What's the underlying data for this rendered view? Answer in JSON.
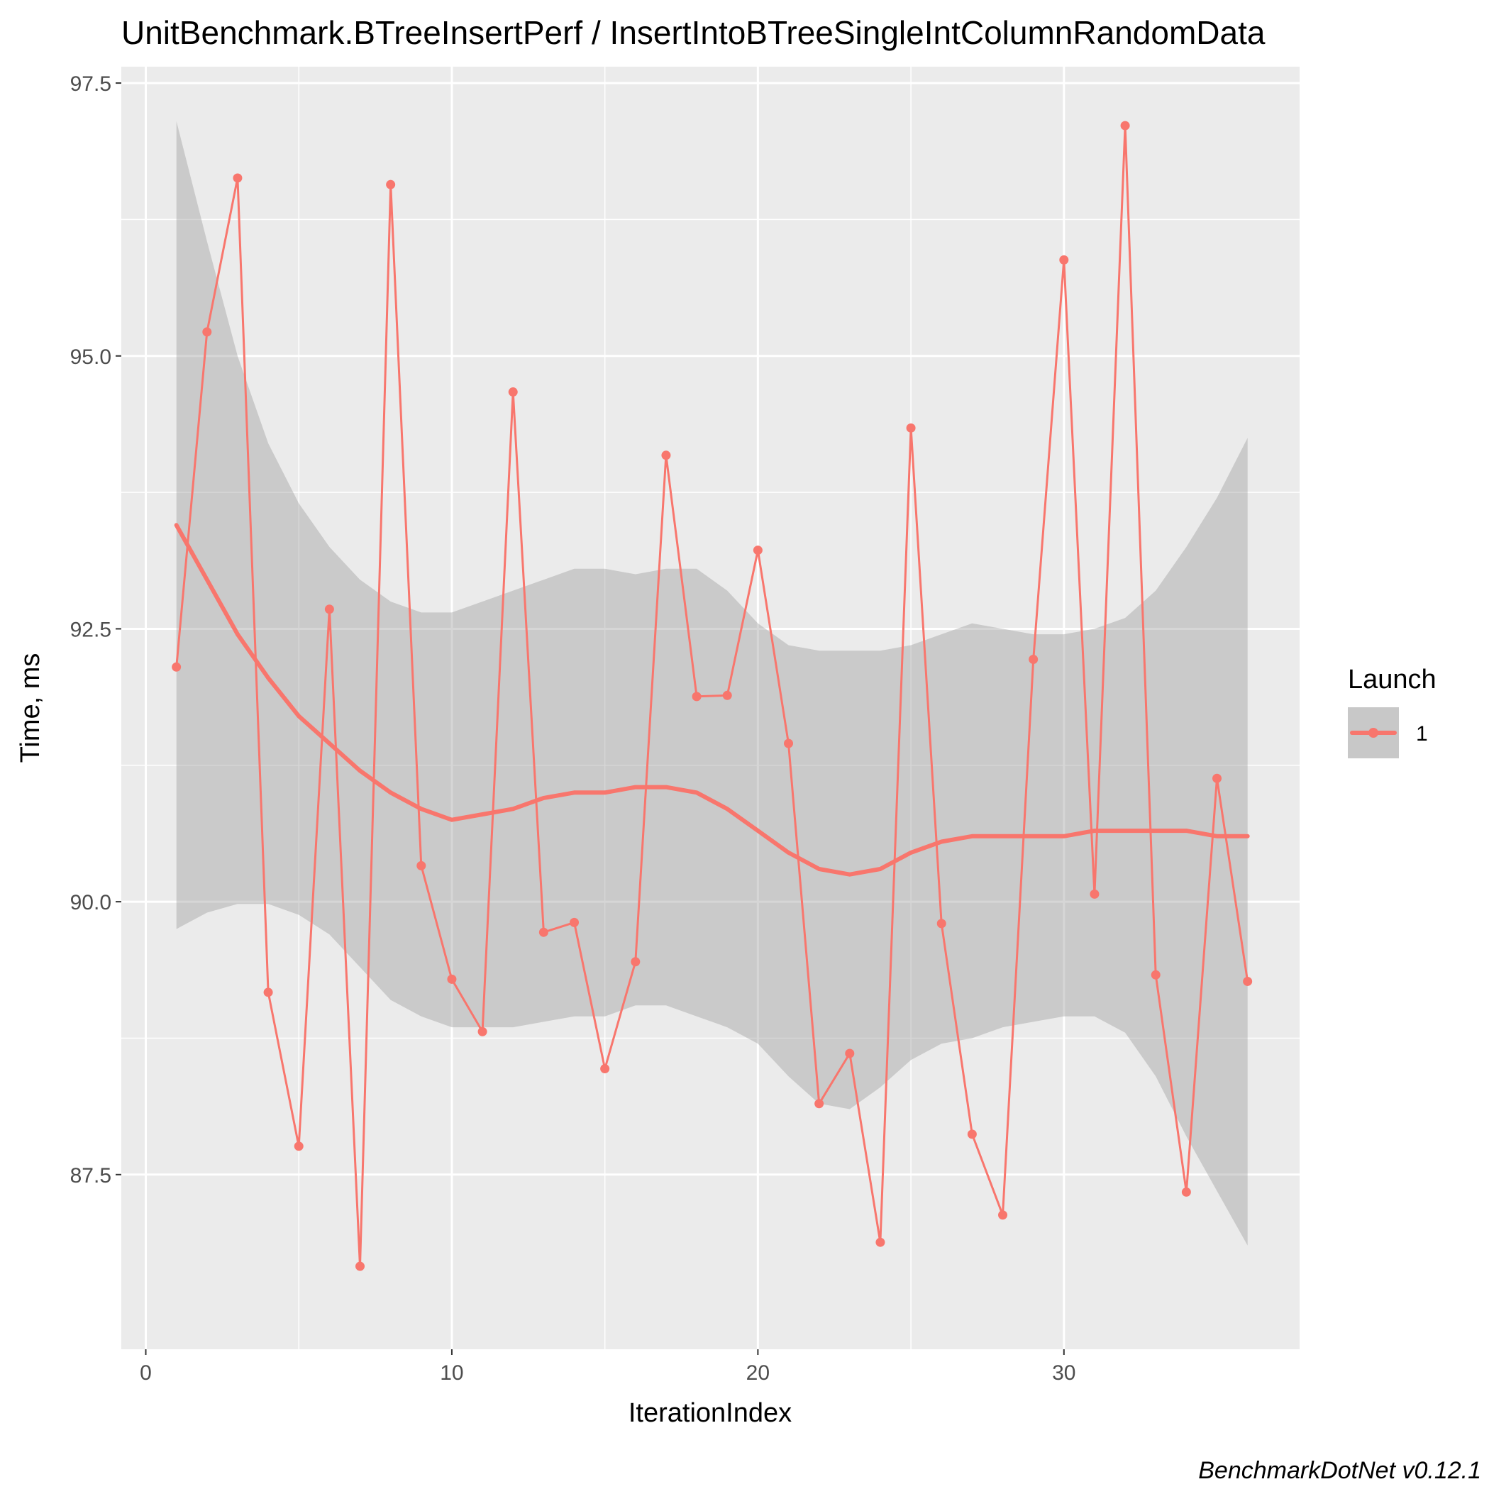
{
  "chart_data": {
    "type": "line",
    "title": "UnitBenchmark.BTreeInsertPerf / InsertIntoBTreeSingleIntColumnRandomData",
    "xlabel": "IterationIndex",
    "ylabel": "Time, ms",
    "xlim": [
      -0.8,
      37.7
    ],
    "ylim": [
      85.9,
      97.65
    ],
    "x_ticks": [
      0,
      10,
      20,
      30
    ],
    "x_tick_labels": [
      "0",
      "10",
      "20",
      "30"
    ],
    "y_ticks": [
      87.5,
      90.0,
      92.5,
      95.0,
      97.5
    ],
    "y_tick_labels": [
      "87.5",
      "90.0",
      "92.5",
      "95.0",
      "97.5"
    ],
    "grid": true,
    "legend": {
      "title": "Launch",
      "position": "right",
      "entries": [
        "1"
      ]
    },
    "colors": {
      "series": "#f8766d",
      "ribbon": "#c8c8c8",
      "panel": "#ebebeb",
      "grid": "#ffffff"
    },
    "series": [
      {
        "name": "1",
        "x": [
          1,
          2,
          3,
          4,
          5,
          6,
          7,
          8,
          9,
          10,
          11,
          12,
          13,
          14,
          15,
          16,
          17,
          18,
          19,
          20,
          21,
          22,
          23,
          24,
          25,
          26,
          27,
          28,
          29,
          30,
          31,
          32,
          33,
          34,
          35,
          36
        ],
        "values": [
          92.15,
          95.22,
          96.63,
          89.17,
          87.76,
          92.68,
          86.66,
          96.57,
          90.33,
          89.29,
          88.81,
          94.67,
          89.72,
          89.81,
          88.47,
          89.45,
          94.09,
          91.88,
          91.89,
          93.22,
          91.45,
          88.15,
          88.61,
          86.88,
          94.34,
          89.8,
          87.87,
          87.13,
          92.22,
          95.88,
          90.07,
          97.11,
          89.33,
          87.34,
          91.13,
          89.27
        ]
      }
    ],
    "smooth": {
      "x": [
        1,
        2,
        3,
        4,
        5,
        6,
        7,
        8,
        9,
        10,
        11,
        12,
        13,
        14,
        15,
        16,
        17,
        18,
        19,
        20,
        21,
        22,
        23,
        24,
        25,
        26,
        27,
        28,
        29,
        30,
        31,
        32,
        33,
        34,
        35,
        36
      ],
      "fit": [
        93.45,
        92.95,
        92.45,
        92.05,
        91.7,
        91.45,
        91.2,
        91.0,
        90.85,
        90.75,
        90.8,
        90.85,
        90.95,
        91.0,
        91.0,
        91.05,
        91.05,
        91.0,
        90.85,
        90.65,
        90.45,
        90.3,
        90.25,
        90.3,
        90.45,
        90.55,
        90.6,
        90.6,
        90.6,
        90.6,
        90.65,
        90.65,
        90.65,
        90.65,
        90.6,
        90.6
      ],
      "lower": [
        89.75,
        89.9,
        89.98,
        89.98,
        89.88,
        89.7,
        89.4,
        89.1,
        88.95,
        88.85,
        88.85,
        88.85,
        88.9,
        88.95,
        88.95,
        89.05,
        89.05,
        88.95,
        88.85,
        88.7,
        88.4,
        88.15,
        88.1,
        88.3,
        88.55,
        88.7,
        88.75,
        88.85,
        88.9,
        88.95,
        88.95,
        88.8,
        88.4,
        87.85,
        87.35,
        86.85
      ],
      "upper": [
        97.15,
        96.05,
        95.0,
        94.2,
        93.65,
        93.25,
        92.95,
        92.75,
        92.65,
        92.65,
        92.75,
        92.85,
        92.95,
        93.05,
        93.05,
        93.0,
        93.05,
        93.05,
        92.85,
        92.55,
        92.35,
        92.3,
        92.3,
        92.3,
        92.35,
        92.45,
        92.55,
        92.5,
        92.45,
        92.45,
        92.5,
        92.6,
        92.85,
        93.25,
        93.7,
        94.25
      ]
    }
  },
  "caption": "BenchmarkDotNet v0.12.1"
}
